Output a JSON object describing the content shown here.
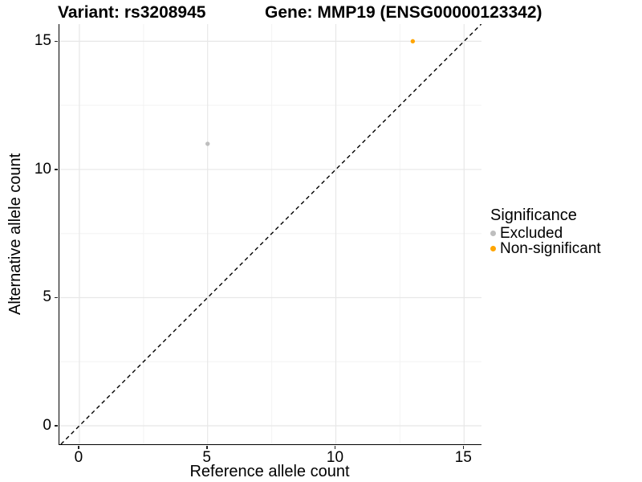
{
  "title": {
    "left": "Variant: rs3208945",
    "right": "Gene: MMP19 (ENSG00000123342)"
  },
  "chart_data": {
    "type": "scatter",
    "title": "Variant: rs3208945    Gene: MMP19 (ENSG00000123342)",
    "xlabel": "Reference allele count",
    "ylabel": "Alternative allele count",
    "xlim": [
      -0.78,
      15.68
    ],
    "ylim": [
      -0.72,
      15.67
    ],
    "x_ticks": [
      0,
      5,
      10,
      15
    ],
    "y_ticks": [
      0,
      5,
      10,
      15
    ],
    "x_minor": [
      2.5,
      7.5,
      12.5
    ],
    "y_minor": [
      2.5,
      7.5,
      12.5
    ],
    "grid": true,
    "reference_line": {
      "type": "identity",
      "style": "dashed",
      "color": "#000000"
    },
    "series": [
      {
        "name": "Excluded",
        "color": "#bebebe",
        "points": [
          {
            "x": 5,
            "y": 11
          }
        ]
      },
      {
        "name": "Non-significant",
        "color": "#ffa500",
        "points": [
          {
            "x": 13,
            "y": 15
          }
        ]
      }
    ],
    "legend": {
      "title": "Significance",
      "position": "right",
      "entries": [
        {
          "label": "Excluded",
          "color": "#bebebe"
        },
        {
          "label": "Non-significant",
          "color": "#ffa500"
        }
      ]
    },
    "colors": {
      "grid_major": "#e7e7e7",
      "grid_minor": "#f3f3f3",
      "axis_line": "#000000",
      "text": "#000000"
    }
  }
}
